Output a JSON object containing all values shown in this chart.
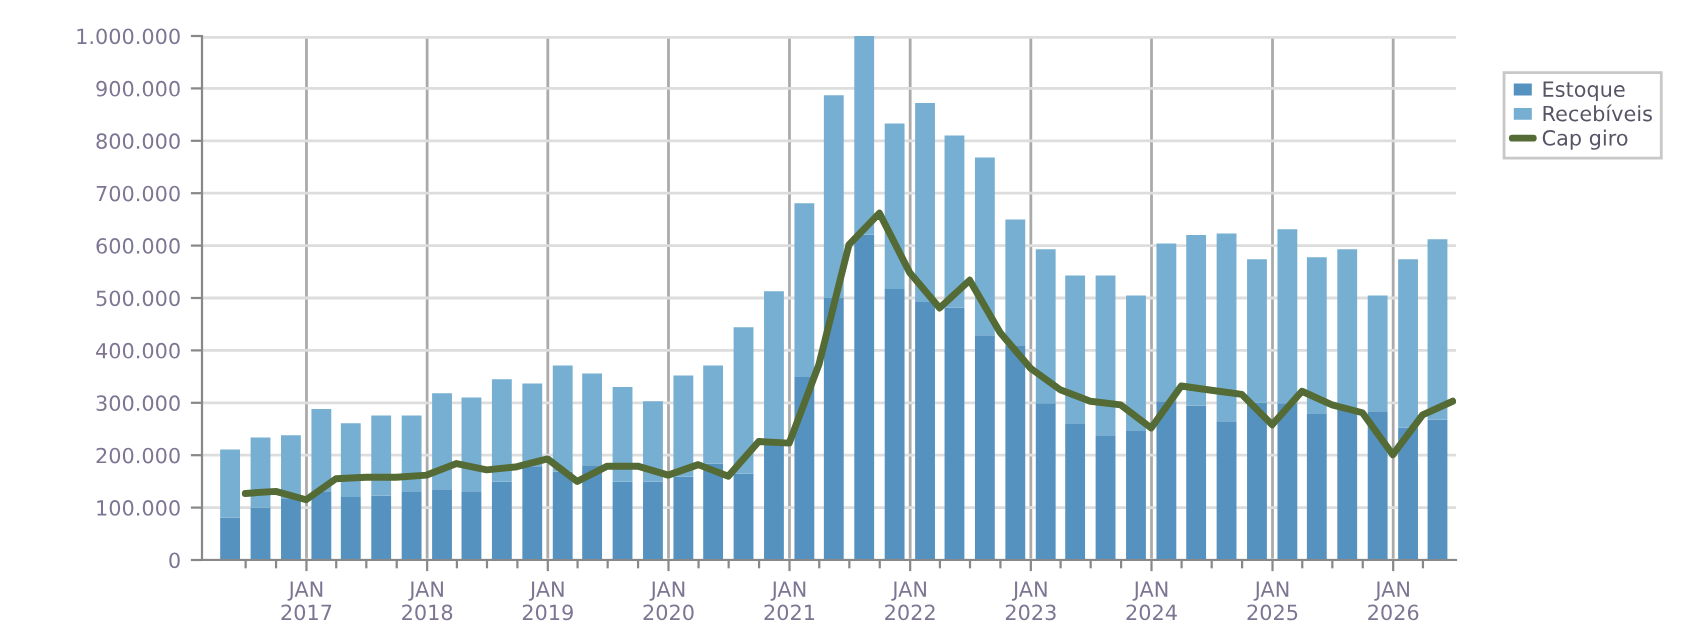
{
  "chart_data": {
    "type": "bar",
    "stacked": true,
    "grid": true,
    "legend": "top right",
    "ylim": [
      0,
      1000000
    ],
    "yticks": [
      {
        "value": 0,
        "label": "0"
      },
      {
        "value": 100000,
        "label": "100.000"
      },
      {
        "value": 200000,
        "label": "200.000"
      },
      {
        "value": 300000,
        "label": "300.000"
      },
      {
        "value": 400000,
        "label": "400.000"
      },
      {
        "value": 500000,
        "label": "500.000"
      },
      {
        "value": 600000,
        "label": "600.000"
      },
      {
        "value": 700000,
        "label": "700.000"
      },
      {
        "value": 800000,
        "label": "800.000"
      },
      {
        "value": 900000,
        "label": "900.000"
      },
      {
        "value": 1000000,
        "label": "1.000.000"
      }
    ],
    "xlim": [
      "2016-02-20",
      "2026-07-10"
    ],
    "xticks": [
      {
        "value": "2016-07-01",
        "label": null
      },
      {
        "value": "2016-10-01",
        "label": null
      },
      {
        "value": "2017-01-01",
        "label": "JAN\n2017"
      },
      {
        "value": "2017-04-01",
        "label": null
      },
      {
        "value": "2017-07-01",
        "label": null
      },
      {
        "value": "2017-10-01",
        "label": null
      },
      {
        "value": "2018-01-01",
        "label": "JAN\n2018"
      },
      {
        "value": "2018-04-01",
        "label": null
      },
      {
        "value": "2018-07-01",
        "label": null
      },
      {
        "value": "2018-10-01",
        "label": null
      },
      {
        "value": "2019-01-01",
        "label": "JAN\n2019"
      },
      {
        "value": "2019-04-01",
        "label": null
      },
      {
        "value": "2019-07-01",
        "label": null
      },
      {
        "value": "2019-10-01",
        "label": null
      },
      {
        "value": "2020-01-01",
        "label": "JAN\n2020"
      },
      {
        "value": "2020-04-01",
        "label": null
      },
      {
        "value": "2020-07-01",
        "label": null
      },
      {
        "value": "2020-10-01",
        "label": null
      },
      {
        "value": "2021-01-01",
        "label": "JAN\n2021"
      },
      {
        "value": "2021-04-01",
        "label": null
      },
      {
        "value": "2021-07-01",
        "label": null
      },
      {
        "value": "2021-10-01",
        "label": null
      },
      {
        "value": "2022-01-01",
        "label": "JAN\n2022"
      },
      {
        "value": "2022-04-01",
        "label": null
      },
      {
        "value": "2022-07-01",
        "label": null
      },
      {
        "value": "2022-10-01",
        "label": null
      },
      {
        "value": "2023-01-01",
        "label": "JAN\n2023"
      },
      {
        "value": "2023-04-01",
        "label": null
      },
      {
        "value": "2023-07-01",
        "label": null
      },
      {
        "value": "2023-10-01",
        "label": null
      },
      {
        "value": "2024-01-01",
        "label": "JAN\n2024"
      },
      {
        "value": "2024-04-01",
        "label": null
      },
      {
        "value": "2024-07-01",
        "label": null
      },
      {
        "value": "2024-10-01",
        "label": null
      },
      {
        "value": "2025-01-01",
        "label": "JAN\n2025"
      },
      {
        "value": "2025-04-01",
        "label": null
      },
      {
        "value": "2025-07-01",
        "label": null
      },
      {
        "value": "2025-10-01",
        "label": null
      },
      {
        "value": "2026-01-01",
        "label": "JAN\n2026"
      },
      {
        "value": "2026-04-01",
        "label": null
      }
    ],
    "x": [
      "2016-05-15",
      "2016-08-15",
      "2016-11-15",
      "2017-02-15",
      "2017-05-15",
      "2017-08-15",
      "2017-11-15",
      "2018-02-15",
      "2018-05-15",
      "2018-08-15",
      "2018-11-15",
      "2019-02-15",
      "2019-05-15",
      "2019-08-15",
      "2019-11-15",
      "2020-02-15",
      "2020-05-15",
      "2020-08-15",
      "2020-11-15",
      "2021-02-15",
      "2021-05-15",
      "2021-08-15",
      "2021-11-15",
      "2022-02-15",
      "2022-05-15",
      "2022-08-15",
      "2022-11-15",
      "2023-02-15",
      "2023-05-15",
      "2023-08-15",
      "2023-11-15",
      "2024-02-15",
      "2024-05-15",
      "2024-08-15",
      "2024-11-15",
      "2025-02-15",
      "2025-05-15",
      "2025-08-15",
      "2025-11-15",
      "2026-02-15",
      "2026-05-15"
    ],
    "series": [
      {
        "name": "Estoque",
        "color": "#5592bf",
        "values": [
          81000,
          100000,
          118000,
          131000,
          120000,
          123000,
          131000,
          135000,
          131000,
          150000,
          179000,
          169000,
          181000,
          150000,
          150000,
          159000,
          184000,
          165000,
          223000,
          349000,
          500000,
          621000,
          517000,
          494000,
          482000,
          429000,
          410000,
          299000,
          261000,
          238000,
          246000,
          303000,
          295000,
          265000,
          300000,
          299000,
          280000,
          288000,
          284000,
          253000,
          268000
        ]
      },
      {
        "name": "Recebíveis",
        "color": "#76afd1",
        "values": [
          130000,
          134000,
          120000,
          157000,
          141000,
          153000,
          145000,
          183000,
          179000,
          195000,
          158000,
          202000,
          175000,
          180000,
          153000,
          193000,
          187000,
          279000,
          290000,
          332000,
          387000,
          379000,
          316000,
          378000,
          328000,
          339000,
          240000,
          294000,
          282000,
          305000,
          259000,
          301000,
          325000,
          358000,
          274000,
          332000,
          298000,
          305000,
          221000,
          321000,
          344000
        ]
      },
      {
        "name": "Cap giro",
        "type": "line",
        "color": "#556b36",
        "x": [
          "2016-06-30",
          "2016-09-30",
          "2016-12-31",
          "2017-03-31",
          "2017-06-30",
          "2017-09-30",
          "2017-12-31",
          "2018-03-31",
          "2018-06-30",
          "2018-09-30",
          "2018-12-31",
          "2019-03-31",
          "2019-06-30",
          "2019-09-30",
          "2019-12-31",
          "2020-03-31",
          "2020-06-30",
          "2020-09-30",
          "2020-12-31",
          "2021-03-31",
          "2021-06-30",
          "2021-09-30",
          "2021-12-31",
          "2022-03-31",
          "2022-06-30",
          "2022-09-30",
          "2022-12-31",
          "2023-03-31",
          "2023-06-30",
          "2023-09-30",
          "2023-12-31",
          "2024-03-31",
          "2024-06-30",
          "2024-09-30",
          "2024-12-31",
          "2025-03-31",
          "2025-06-30",
          "2025-09-30",
          "2025-12-31",
          "2026-03-31",
          "2026-06-30"
        ],
        "values": [
          127000,
          131000,
          115000,
          155000,
          158000,
          158000,
          162000,
          184000,
          172000,
          178000,
          193000,
          150000,
          179000,
          179000,
          162000,
          182000,
          160000,
          226000,
          223000,
          373000,
          602000,
          662000,
          548000,
          481000,
          534000,
          434000,
          366000,
          325000,
          303000,
          296000,
          252000,
          332000,
          324000,
          316000,
          258000,
          322000,
          296000,
          281000,
          201000,
          277000,
          303000
        ]
      }
    ]
  }
}
